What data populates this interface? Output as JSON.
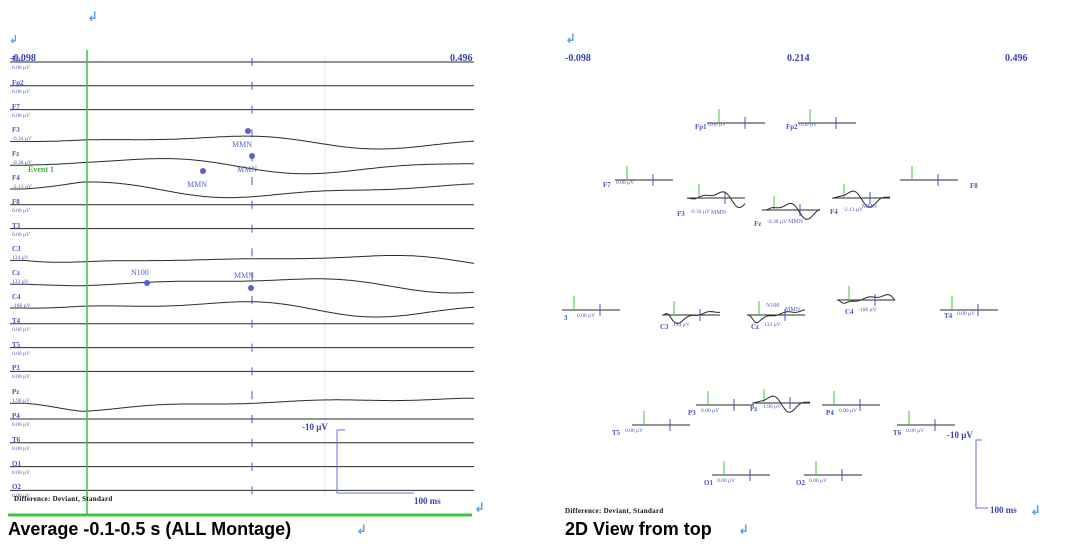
{
  "left_panel": {
    "time_start": "-0.098",
    "time_end": "0.496",
    "channels": [
      {
        "name": "Fp1",
        "value": "0.00 µV"
      },
      {
        "name": "Fp2",
        "value": "0.00 µV"
      },
      {
        "name": "F7",
        "value": "0.00 µV"
      },
      {
        "name": "F3",
        "value": "-0.34 µV"
      },
      {
        "name": "Fz",
        "value": "-0.38 µV"
      },
      {
        "name": "F4",
        "value": "-2.13 µV"
      },
      {
        "name": "F8",
        "value": "0.00 µV"
      },
      {
        "name": "T3",
        "value": "0.00 µV"
      },
      {
        "name": "C3",
        "value": "134 µV"
      },
      {
        "name": "Cz",
        "value": "133 µV"
      },
      {
        "name": "C4",
        "value": "-168 µV"
      },
      {
        "name": "T4",
        "value": "0.00 µV"
      },
      {
        "name": "T5",
        "value": "0.00 µV"
      },
      {
        "name": "P3",
        "value": "0.00 µV"
      },
      {
        "name": "Pz",
        "value": "1.96 µV"
      },
      {
        "name": "P4",
        "value": "0.00 µV"
      },
      {
        "name": "T6",
        "value": "0.00 µV"
      },
      {
        "name": "O1",
        "value": "0.00 µV"
      },
      {
        "name": "O2",
        "value": "0.00 µV"
      }
    ],
    "event_label": "Event 1",
    "annotations": [
      "MMN",
      "MMN",
      "MMN",
      "N100",
      "MMN"
    ],
    "scale_amplitude": "-10 µV",
    "scale_time": "100 ms",
    "difference_label": "Difference: Deviant, Standard",
    "caption": "Average -0.1-0.5 s (ALL Montage)"
  },
  "right_panel": {
    "time_start": "-0.098",
    "time_mid": "0.214",
    "time_end": "0.496",
    "electrodes": [
      {
        "name": "Fp1",
        "value": "0.00 µV"
      },
      {
        "name": "Fp2",
        "value": "0.00 µV"
      },
      {
        "name": "F7",
        "value": "0.00 µV"
      },
      {
        "name": "F3",
        "value": "-0.34 µV"
      },
      {
        "name": "Fz",
        "value": "-0.38 µV"
      },
      {
        "name": "F4",
        "value": "-2.13 µV"
      },
      {
        "name": "F8",
        "value": ""
      },
      {
        "name": "3",
        "value": "0.00 µV"
      },
      {
        "name": "C3",
        "value": "134 µV"
      },
      {
        "name": "Cz",
        "value": "133 µV"
      },
      {
        "name": "C4",
        "value": "-168 µV"
      },
      {
        "name": "T4",
        "value": "0.00 µV"
      },
      {
        "name": "T5",
        "value": "0.00 µV"
      },
      {
        "name": "P3",
        "value": "0.00 µV"
      },
      {
        "name": "Pz",
        "value": "1.96 µV"
      },
      {
        "name": "P4",
        "value": "0.00 µV"
      },
      {
        "name": "T6",
        "value": "0.00 µV"
      },
      {
        "name": "O1",
        "value": "0.00 µV"
      },
      {
        "name": "O2",
        "value": "0.00 µV"
      }
    ],
    "annotations": [
      "MMN",
      "MMN",
      "MMN",
      "N100",
      "MMN"
    ],
    "scale_amplitude": "-10 µV",
    "scale_time": "100 ms",
    "difference_label": "Difference: Deviant, Standard",
    "caption": "2D View from top"
  },
  "paragraph_mark": "↲",
  "colors": {
    "label": "#4a53c7",
    "event": "#3cc43c",
    "trace": "#222222",
    "mark": "#5aa2e6"
  }
}
